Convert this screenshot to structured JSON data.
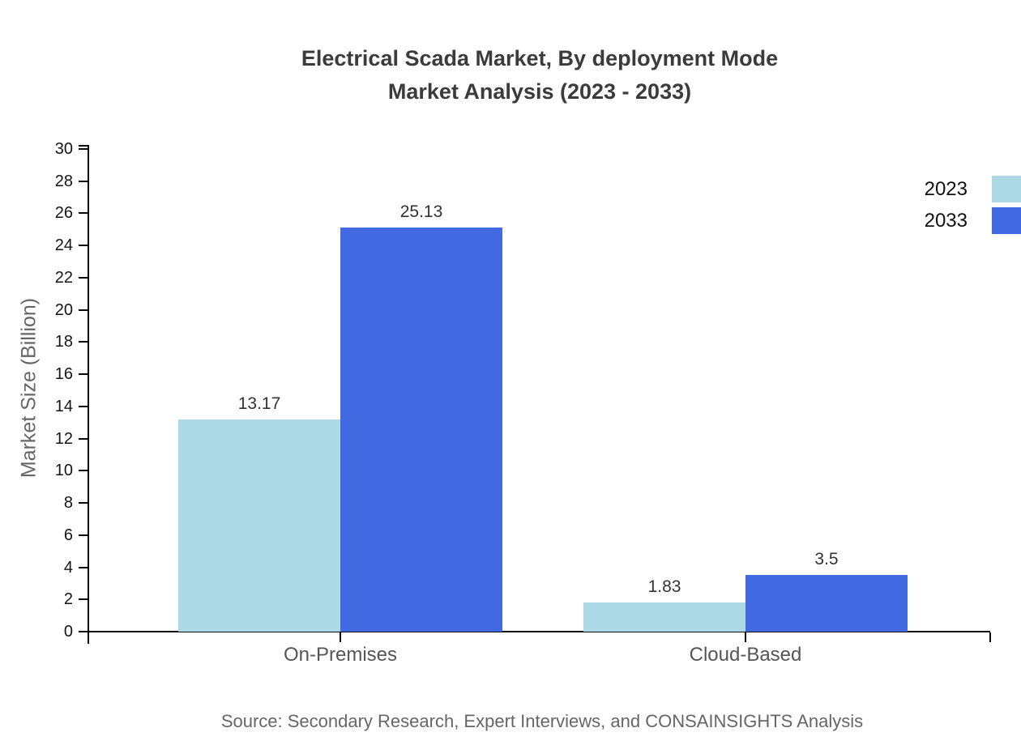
{
  "title": {
    "line1": "Electrical Scada Market, By deployment Mode",
    "line2": "Market Analysis (2023 - 2033)"
  },
  "source": "Source: Secondary Research, Expert Interviews, and CONSAINSIGHTS Analysis",
  "chart_data": {
    "type": "bar",
    "title": "Electrical Scada Market, By deployment Mode Market Analysis (2023 - 2033)",
    "categories": [
      "On-Premises",
      "Cloud-Based"
    ],
    "series": [
      {
        "name": "2023",
        "color": "#ADD8E6",
        "values": [
          13.17,
          1.83
        ]
      },
      {
        "name": "2033",
        "color": "#4169E1",
        "values": [
          25.13,
          3.5
        ]
      }
    ],
    "xlabel": "",
    "ylabel": "Market Size (Billion)",
    "ylim": [
      0,
      30
    ],
    "ytick_step": 2,
    "grid": false,
    "legend_position": "top-right"
  }
}
